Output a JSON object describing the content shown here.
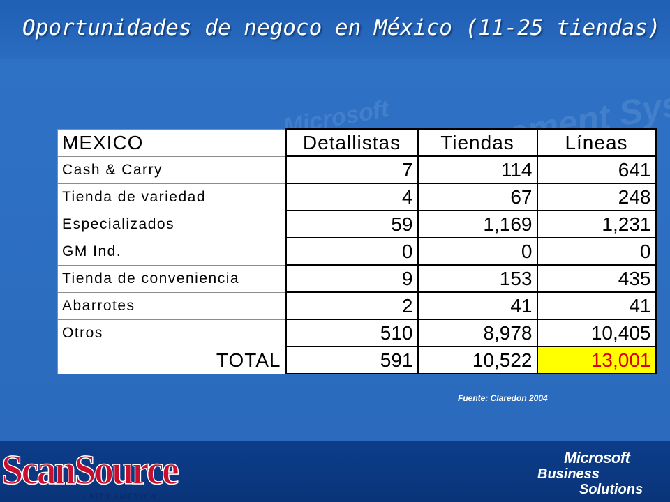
{
  "title": "Oportunidades de negoco en México (11-25 tiendas)",
  "table": {
    "headers": [
      "MEXICO",
      "Detallistas",
      "Tiendas",
      "Líneas"
    ],
    "rows": [
      [
        "Cash & Carry",
        "7",
        "114",
        "641"
      ],
      [
        "Tienda de variedad",
        "4",
        "67",
        "248"
      ],
      [
        "Especializados",
        "59",
        "1,169",
        "1,231"
      ],
      [
        "GM Ind.",
        "0",
        "0",
        "0"
      ],
      [
        "Tienda de conveniencia",
        "9",
        "153",
        "435"
      ],
      [
        "Abarrotes",
        "2",
        "41",
        "41"
      ],
      [
        "Otros",
        "510",
        "8,978",
        "10,405"
      ]
    ],
    "total": [
      "TOTAL",
      "591",
      "10,522",
      "13,001"
    ]
  },
  "source": "Fuente: Claredon 2004",
  "logos": {
    "left": "ScanSource",
    "left_sub": "LATIN AMERICA",
    "right_1": "Microsoft",
    "right_2": "Business",
    "right_3": "Solutions"
  },
  "watermark": [
    "Microsoft",
    "Retail Management System"
  ],
  "colors": {
    "highlight_bg": "#ffff00",
    "highlight_text": "#e00000",
    "logo_red": "#c8102e"
  }
}
